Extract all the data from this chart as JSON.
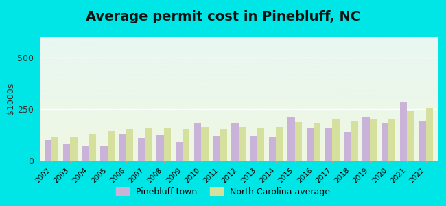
{
  "title": "Average permit cost in Pinebluff, NC",
  "ylabel": "$1000s",
  "years": [
    2002,
    2003,
    2004,
    2005,
    2006,
    2007,
    2008,
    2009,
    2010,
    2011,
    2012,
    2013,
    2014,
    2015,
    2016,
    2017,
    2018,
    2019,
    2020,
    2021,
    2022
  ],
  "pinebluff": [
    100,
    80,
    75,
    70,
    130,
    110,
    125,
    90,
    185,
    120,
    185,
    120,
    115,
    210,
    160,
    160,
    140,
    215,
    185,
    285,
    195
  ],
  "nc_average": [
    115,
    115,
    130,
    145,
    155,
    160,
    160,
    155,
    165,
    155,
    165,
    160,
    165,
    190,
    185,
    200,
    195,
    205,
    205,
    245,
    255
  ],
  "pinebluff_color": "#c9b3d9",
  "nc_color": "#d4e09b",
  "outer_bg": "#00e5e5",
  "plot_bg_top": "#e8f7f2",
  "plot_bg_bottom": "#f0f7e2",
  "ylim": [
    0,
    600
  ],
  "yticks": [
    0,
    250,
    500
  ],
  "title_fontsize": 14,
  "legend_pinebluff": "Pinebluff town",
  "legend_nc": "North Carolina average"
}
